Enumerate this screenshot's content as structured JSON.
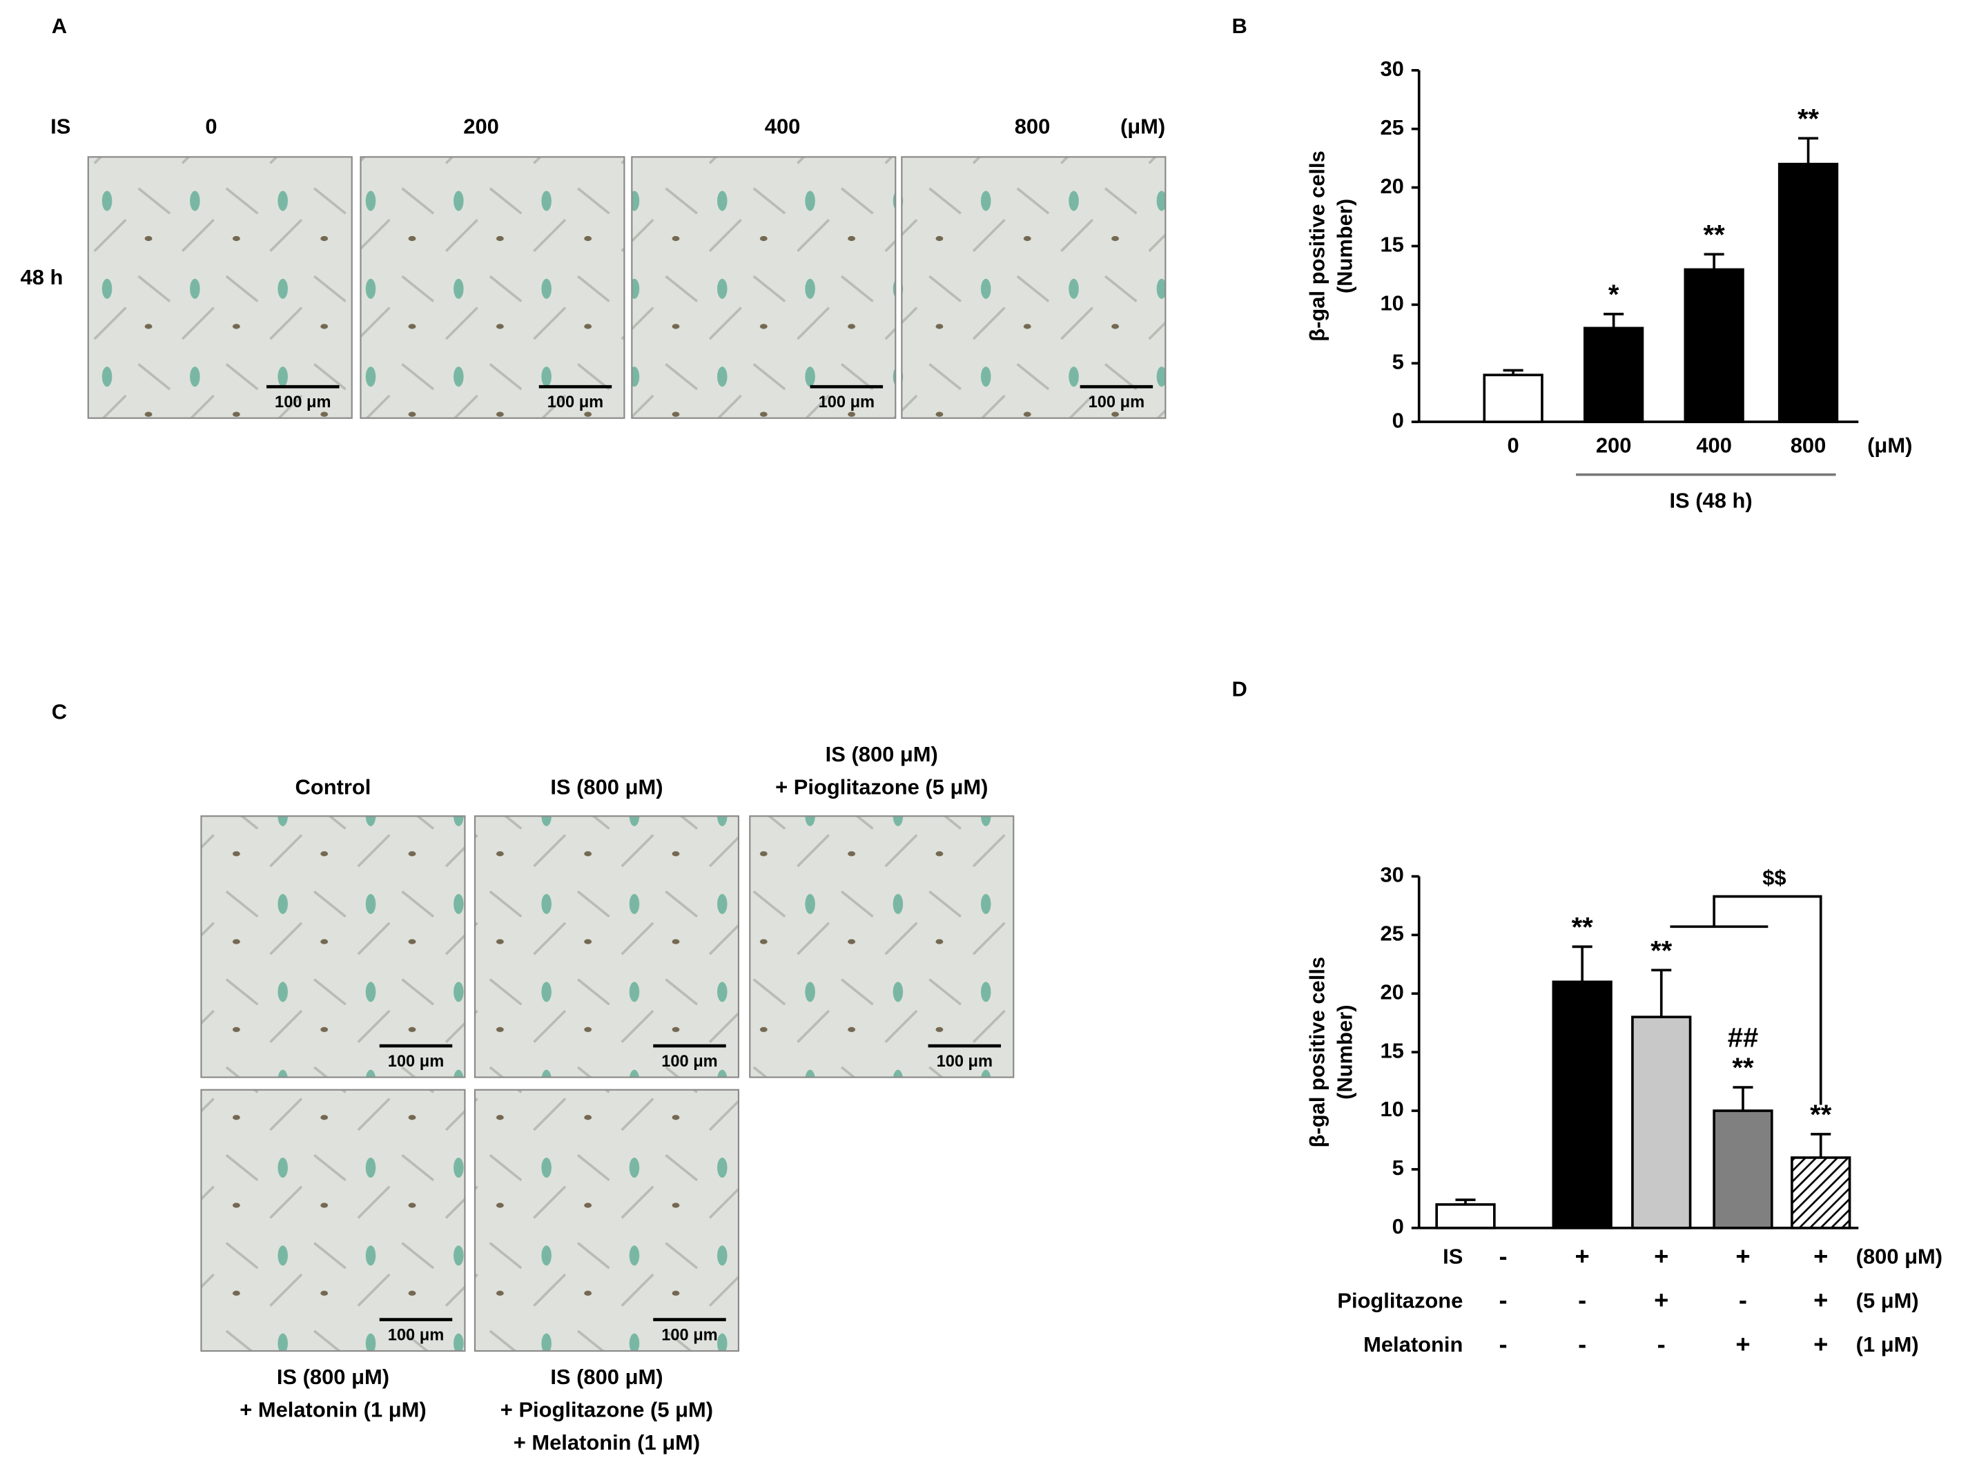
{
  "panel_letters": [
    "A",
    "B",
    "C",
    "D"
  ],
  "panel_a": {
    "row_label": "IS",
    "columns": [
      "0",
      "200",
      "400",
      "800"
    ],
    "unit": "(μM)",
    "time": "48 h",
    "scale_bar": "100 μm"
  },
  "panel_c": {
    "top_labels": [
      [
        "Control"
      ],
      [
        "IS (800 μM)"
      ],
      [
        "IS  (800 μM)",
        "+ Pioglitazone  (5 μM)"
      ]
    ],
    "bottom_labels": [
      [
        "IS  (800 μM)",
        "+ Melatonin (1 μM)"
      ],
      [
        "IS  (800 μM)",
        "+ Pioglitazone  (5 μM)",
        "+ Melatonin (1 μM)"
      ]
    ],
    "scale_bar": "100 μm"
  },
  "chart_data": [
    {
      "type": "bar",
      "y_label": [
        "β-gal positive cells",
        "(Number)"
      ],
      "categories": [
        "0",
        "200",
        "400",
        "800"
      ],
      "x_unit": "(μM)",
      "group_label": "IS (48 h)",
      "values": [
        4,
        8,
        13,
        22
      ],
      "errors": [
        0.4,
        1.2,
        1.3,
        2.2
      ],
      "colors": [
        "#ffffff",
        "#000000",
        "#000000",
        "#000000"
      ],
      "annotations": [
        [],
        [
          "*"
        ],
        [
          "**"
        ],
        [
          "**"
        ]
      ],
      "ylim": [
        0,
        30
      ],
      "yticks": [
        0,
        5,
        10,
        15,
        20,
        25,
        30
      ]
    },
    {
      "type": "bar",
      "y_label": [
        "β-gal positive cells",
        "(Number)"
      ],
      "values": [
        2,
        21,
        18,
        10,
        6
      ],
      "errors": [
        0.4,
        3,
        4,
        2,
        2
      ],
      "colors": [
        "#ffffff",
        "#000000",
        "#c8c8c8",
        "#808080",
        "#ffffff"
      ],
      "hatched": [
        false,
        false,
        false,
        false,
        true
      ],
      "annotations": [
        [],
        [
          "**"
        ],
        [
          "**"
        ],
        [
          "##",
          "**"
        ],
        [
          "**"
        ]
      ],
      "bracket_label": "$$",
      "condition_rows": [
        {
          "label": "IS",
          "marks": [
            "-",
            "+",
            "+",
            "+",
            "+"
          ],
          "unit": "(800 μM)"
        },
        {
          "label": "Pioglitazone",
          "marks": [
            "-",
            "-",
            "+",
            "-",
            "+"
          ],
          "unit": "(5 μM)"
        },
        {
          "label": "Melatonin",
          "marks": [
            "-",
            "-",
            "-",
            "+",
            "+"
          ],
          "unit": "(1 μM)"
        }
      ],
      "ylim": [
        0,
        30
      ],
      "yticks": [
        0,
        5,
        10,
        15,
        20,
        25,
        30
      ]
    }
  ]
}
